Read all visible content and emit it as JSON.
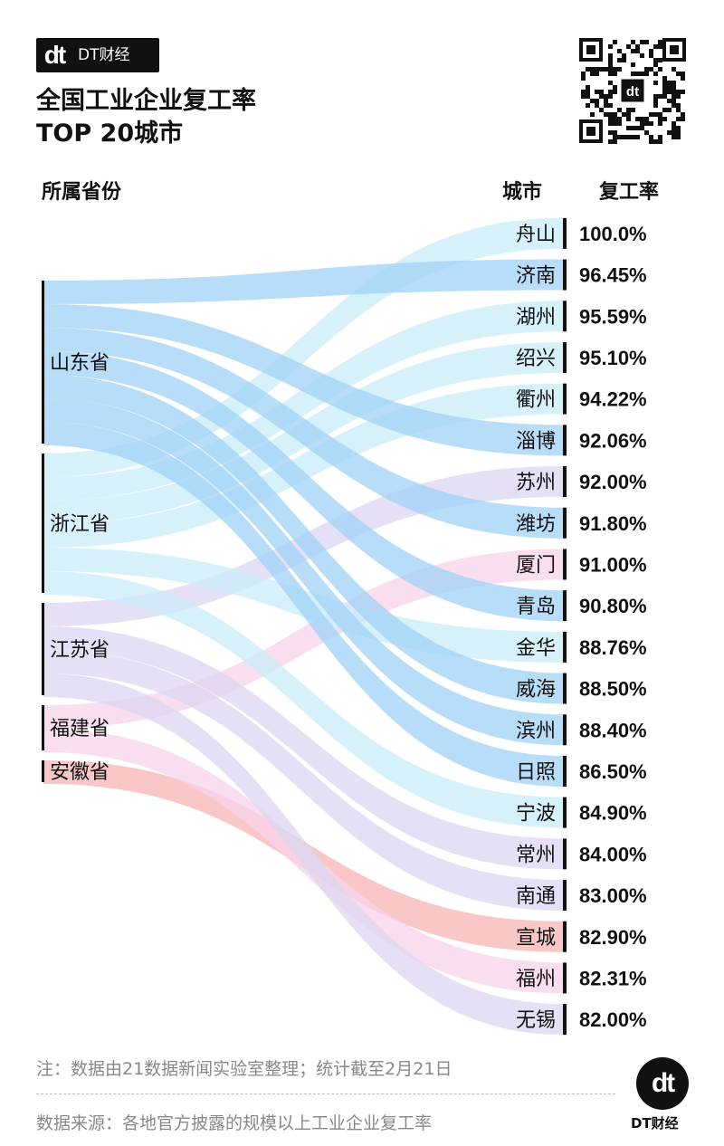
{
  "brand": {
    "logo_text": "dt",
    "name": "DT财经"
  },
  "title_line1": "全国工业企业复工率",
  "title_line2": "TOP 20城市",
  "headers": {
    "province": "所属省份",
    "city": "城市",
    "rate": "复工率"
  },
  "chart_data": {
    "type": "sankey",
    "title": "全国工业企业复工率 TOP 20城市",
    "provinces": [
      {
        "name": "山东省",
        "color": "#9fd2f5"
      },
      {
        "name": "浙江省",
        "color": "#c9ecf9"
      },
      {
        "name": "江苏省",
        "color": "#dcd5f1"
      },
      {
        "name": "福建省",
        "color": "#f7d3ea"
      },
      {
        "name": "安徽省",
        "color": "#f8b4b4"
      }
    ],
    "cities": [
      {
        "name": "舟山",
        "province": "浙江省",
        "rate": 100.0,
        "label": "100.0%"
      },
      {
        "name": "济南",
        "province": "山东省",
        "rate": 96.45,
        "label": "96.45%"
      },
      {
        "name": "湖州",
        "province": "浙江省",
        "rate": 95.59,
        "label": "95.59%"
      },
      {
        "name": "绍兴",
        "province": "浙江省",
        "rate": 95.1,
        "label": "95.10%"
      },
      {
        "name": "衢州",
        "province": "浙江省",
        "rate": 94.22,
        "label": "94.22%"
      },
      {
        "name": "淄博",
        "province": "山东省",
        "rate": 92.06,
        "label": "92.06%"
      },
      {
        "name": "苏州",
        "province": "江苏省",
        "rate": 92.0,
        "label": "92.00%"
      },
      {
        "name": "潍坊",
        "province": "山东省",
        "rate": 91.8,
        "label": "91.80%"
      },
      {
        "name": "厦门",
        "province": "福建省",
        "rate": 91.0,
        "label": "91.00%"
      },
      {
        "name": "青岛",
        "province": "山东省",
        "rate": 90.8,
        "label": "90.80%"
      },
      {
        "name": "金华",
        "province": "浙江省",
        "rate": 88.76,
        "label": "88.76%"
      },
      {
        "name": "威海",
        "province": "山东省",
        "rate": 88.5,
        "label": "88.50%"
      },
      {
        "name": "滨州",
        "province": "山东省",
        "rate": 88.4,
        "label": "88.40%"
      },
      {
        "name": "日照",
        "province": "山东省",
        "rate": 86.5,
        "label": "86.50%"
      },
      {
        "name": "宁波",
        "province": "浙江省",
        "rate": 84.9,
        "label": "84.90%"
      },
      {
        "name": "常州",
        "province": "江苏省",
        "rate": 84.0,
        "label": "84.00%"
      },
      {
        "name": "南通",
        "province": "江苏省",
        "rate": 83.0,
        "label": "83.00%"
      },
      {
        "name": "宣城",
        "province": "安徽省",
        "rate": 82.9,
        "label": "82.90%"
      },
      {
        "name": "福州",
        "province": "福建省",
        "rate": 82.31,
        "label": "82.31%"
      },
      {
        "name": "无锡",
        "province": "江苏省",
        "rate": 82.0,
        "label": "82.00%"
      }
    ]
  },
  "note": "注：数据由21数据新闻实验室整理；统计截至2月21日",
  "source": "数据来源：各地官方披露的规模以上工业企业复工率",
  "footer_logo": {
    "logo_text": "dt",
    "name": "DT财经"
  }
}
